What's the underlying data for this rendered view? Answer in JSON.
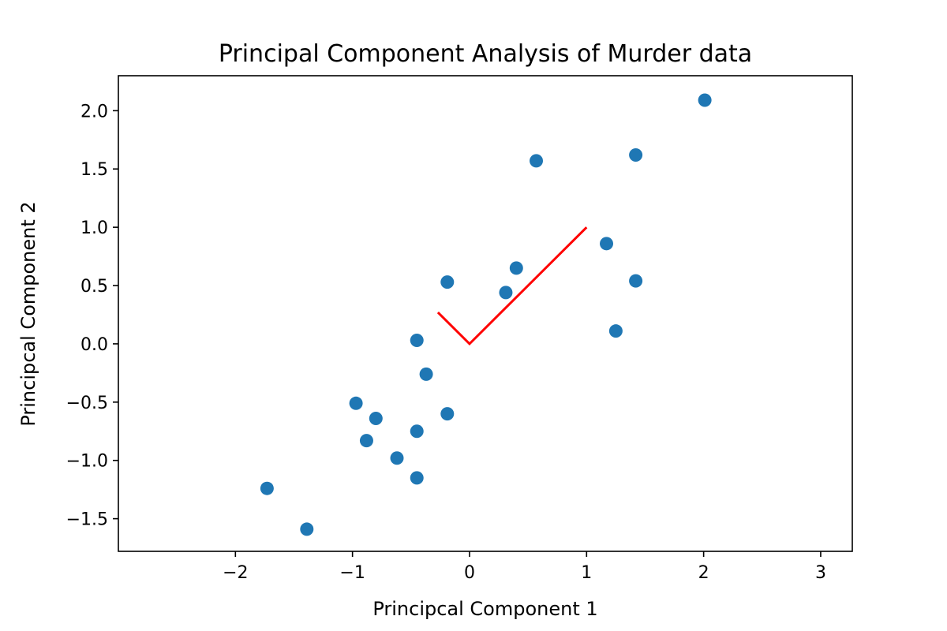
{
  "chart_data": {
    "type": "scatter",
    "title": "Principal Component Analysis of Murder data",
    "xlabel": "Principcal Component 1",
    "ylabel": "Principcal Component 2",
    "xlim": [
      -3.0,
      3.27
    ],
    "ylim": [
      -1.78,
      2.3
    ],
    "xticks": [
      -2,
      -1,
      0,
      1,
      2,
      3
    ],
    "yticks": [
      -1.5,
      -1.0,
      -0.5,
      0.0,
      0.5,
      1.0,
      1.5,
      2.0
    ],
    "xtick_labels": [
      "−2",
      "−1",
      "0",
      "1",
      "2",
      "3"
    ],
    "ytick_labels": [
      "−1.5",
      "−1.0",
      "−0.5",
      "0.0",
      "0.5",
      "1.0",
      "1.5",
      "2.0"
    ],
    "grid": false,
    "points": {
      "color": "#1f77b4",
      "x": [
        2.01,
        1.42,
        0.57,
        1.17,
        1.42,
        1.25,
        0.4,
        0.31,
        -0.19,
        -0.45,
        -0.37,
        -0.19,
        -0.97,
        -0.8,
        -0.88,
        -0.45,
        -0.62,
        -0.45,
        -1.73,
        -1.39
      ],
      "y": [
        2.09,
        1.62,
        1.57,
        0.86,
        0.54,
        0.11,
        0.65,
        0.44,
        0.53,
        0.03,
        -0.26,
        -0.6,
        -0.51,
        -0.64,
        -0.83,
        -0.75,
        -0.98,
        -1.15,
        -1.24,
        -1.59
      ]
    },
    "components_line": {
      "color": "#ff0000",
      "x": [
        -0.27,
        0.0,
        1.0
      ],
      "y": [
        0.27,
        0.0,
        1.0
      ]
    }
  }
}
